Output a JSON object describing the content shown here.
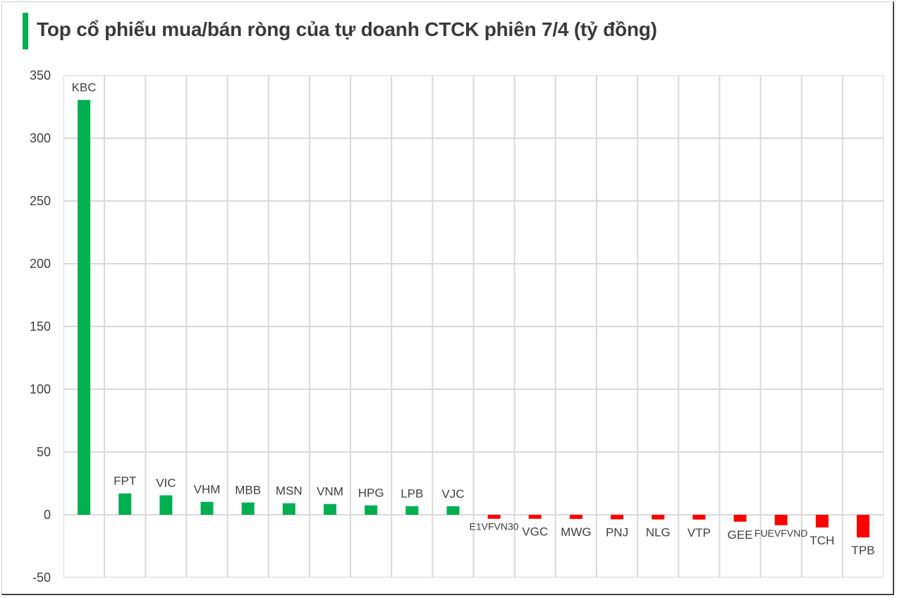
{
  "title": "Top cổ phiếu mua/bán ròng của tự doanh CTCK phiên 7/4 (tỷ đồng)",
  "colors": {
    "positive": "#00b050",
    "negative": "#ff0000",
    "accent_bar": "#00b050",
    "grid": "#d9d9d9",
    "text": "#404040"
  },
  "chart_data": {
    "type": "bar",
    "title": "Top cổ phiếu mua/bán ròng của tự doanh CTCK phiên 7/4 (tỷ đồng)",
    "xlabel": "",
    "ylabel": "",
    "ylim": [
      -50,
      350
    ],
    "yticks": [
      350,
      300,
      250,
      200,
      150,
      100,
      50,
      0,
      -50
    ],
    "grid": true,
    "legend": "none",
    "categories": [
      "KBC",
      "FPT",
      "VIC",
      "VHM",
      "MBB",
      "MSN",
      "VNM",
      "HPG",
      "LPB",
      "VJC",
      "E1VFVN30",
      "VGC",
      "MWG",
      "PNJ",
      "NLG",
      "VTP",
      "GEE",
      "FUEVFVND",
      "TCH",
      "TPB"
    ],
    "values": [
      330.5,
      17.0,
      15.5,
      10.3,
      9.8,
      9.2,
      8.6,
      7.5,
      6.9,
      6.8,
      -3.2,
      -3.2,
      -3.3,
      -3.6,
      -3.7,
      -3.8,
      -5.5,
      -8.3,
      -10.1,
      -18.0
    ]
  }
}
